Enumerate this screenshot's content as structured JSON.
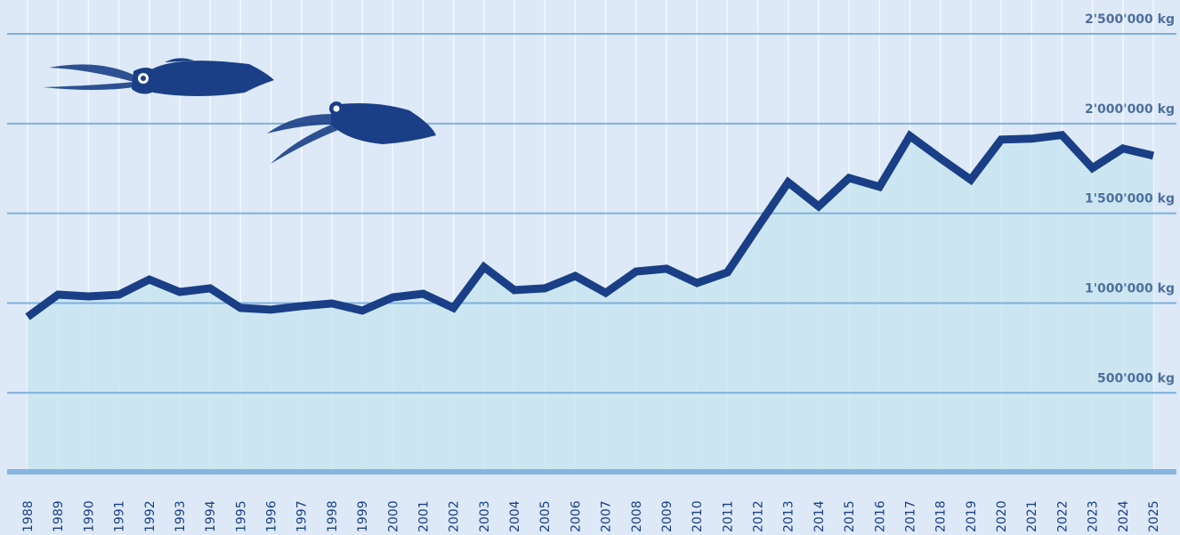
{
  "chart_data": {
    "type": "line",
    "categories": [
      "1988",
      "1989",
      "1990",
      "1991",
      "1992",
      "1993",
      "1994",
      "1995",
      "1996",
      "1997",
      "1998",
      "1999",
      "2000",
      "2001",
      "2002",
      "2003",
      "2004",
      "2005",
      "2006",
      "2007",
      "2008",
      "2009",
      "2010",
      "2011",
      "2012",
      "2013",
      "2014",
      "2015",
      "2016",
      "2017",
      "2018",
      "2019",
      "2020",
      "2021",
      "2022",
      "2023",
      "2024",
      "2025"
    ],
    "values": [
      923000,
      1047000,
      1037000,
      1047000,
      1131000,
      1062000,
      1082000,
      973000,
      963000,
      983000,
      998000,
      958000,
      1032000,
      1052000,
      973000,
      1201000,
      1072000,
      1082000,
      1151000,
      1057000,
      1176000,
      1191000,
      1112000,
      1171000,
      1424000,
      1673000,
      1539000,
      1697000,
      1648000,
      1931000,
      1806000,
      1687000,
      1911000,
      1916000,
      1936000,
      1752000,
      1861000,
      1821000
    ],
    "color": "#1a3f86",
    "area_color": "#c9e5f0",
    "ylim": [
      60000,
      2500000
    ],
    "yticks": [
      {
        "value": 500000,
        "label": "500'000 kg"
      },
      {
        "value": 1000000,
        "label": "1'000'000 kg"
      },
      {
        "value": 1500000,
        "label": "1'500'000 kg"
      },
      {
        "value": 2000000,
        "label": "2'000'000 kg"
      },
      {
        "value": 2500000,
        "label": "2'500'000 kg"
      }
    ],
    "grid": true
  }
}
